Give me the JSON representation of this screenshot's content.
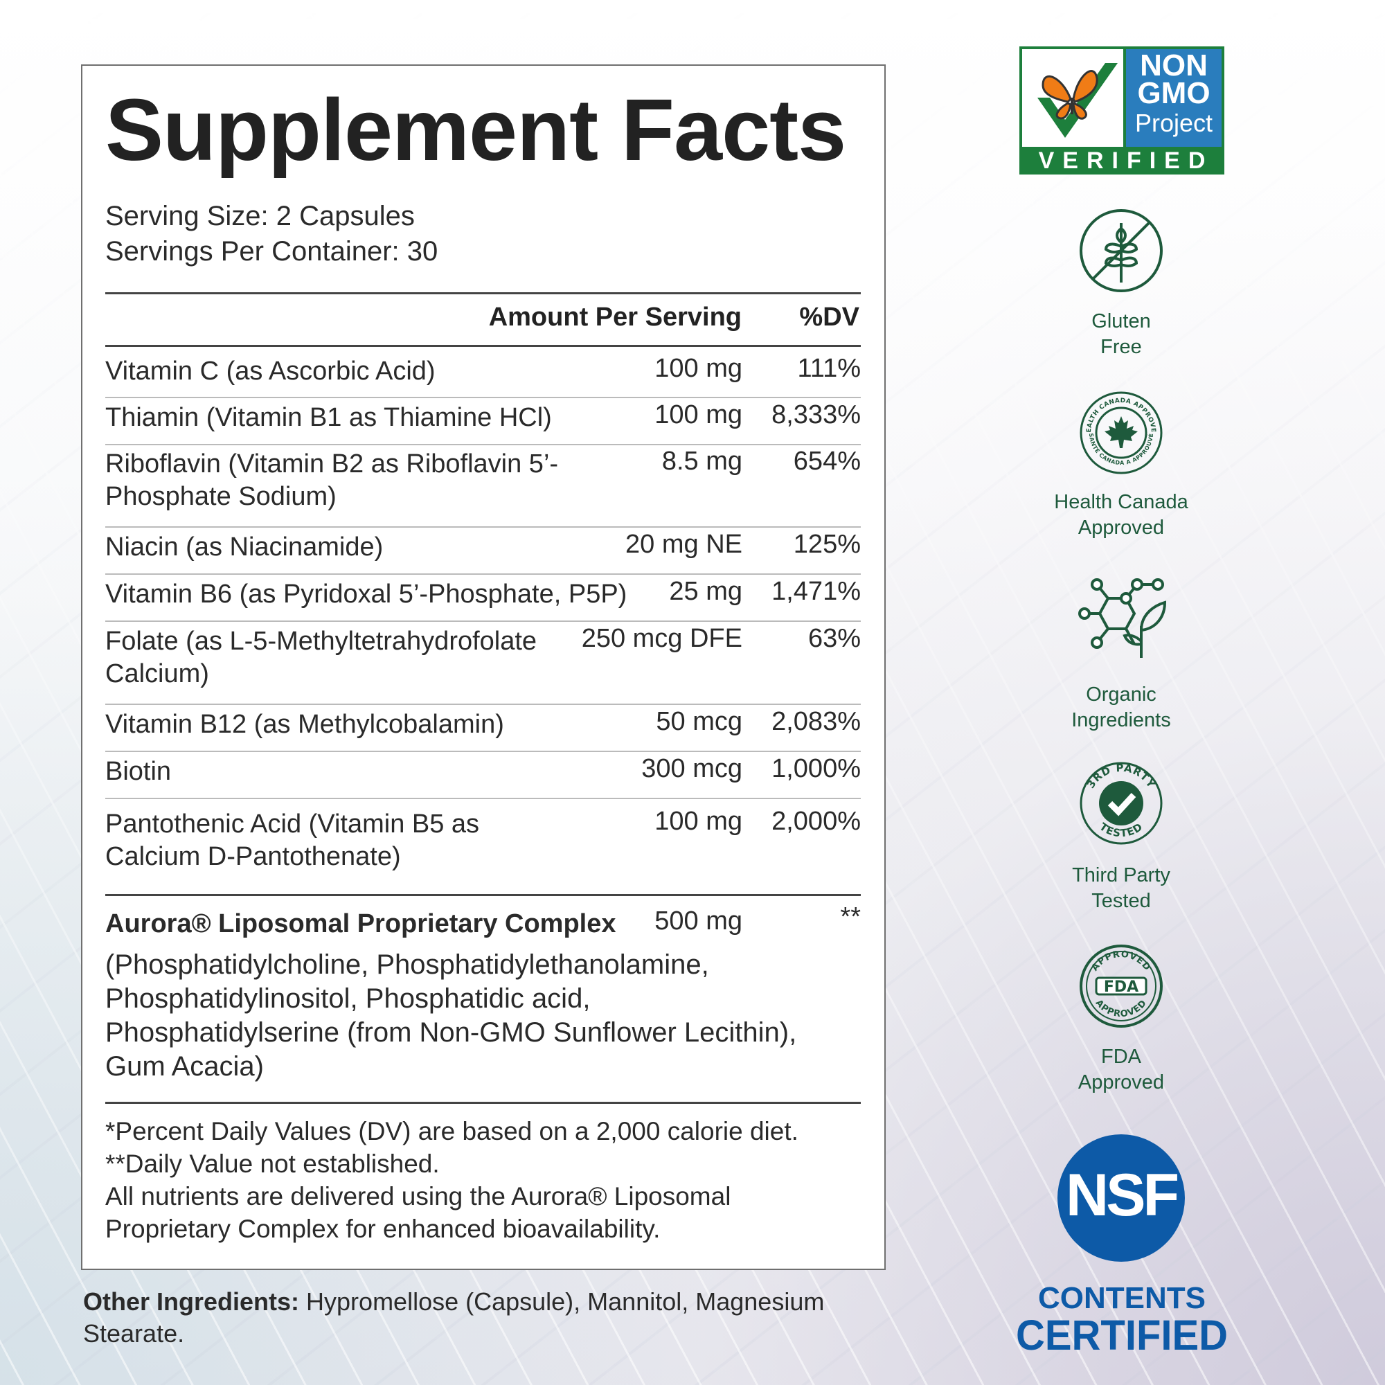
{
  "panel": {
    "title": "Supplement Facts",
    "serving_size": "Serving Size: 2 Capsules",
    "servings_per_container": "Servings Per Container: 30",
    "header_amount": "Amount Per Serving",
    "header_dv": "%DV",
    "rows": [
      {
        "name": "Vitamin C (as Ascorbic Acid)",
        "amount": "100 mg",
        "dv": "111%"
      },
      {
        "name": "Thiamin (Vitamin B1 as Thiamine HCl)",
        "amount": "100 mg",
        "dv": "8,333%"
      },
      {
        "name": "Riboflavin (Vitamin B2 as Riboflavin 5’-Phosphate Sodium)",
        "amount": "8.5 mg",
        "dv": "654%"
      },
      {
        "name": "Niacin (as Niacinamide)",
        "amount": "20 mg NE",
        "dv": "125%"
      },
      {
        "name": "Vitamin B6 (as Pyridoxal 5’-Phosphate, P5P)",
        "amount": "25 mg",
        "dv": "1,471%"
      },
      {
        "name": "Folate (as L-5-Methyltetrahydrofolate Calcium)",
        "amount": "250 mcg DFE",
        "dv": "63%"
      },
      {
        "name": "Vitamin B12 (as Methylcobalamin)",
        "amount": "50 mcg",
        "dv": "2,083%"
      },
      {
        "name": "Biotin",
        "amount": "300 mcg",
        "dv": "1,000%"
      },
      {
        "name": "Pantothenic Acid (Vitamin B5 as Calcium D-Pantothenate)",
        "amount": "100 mg",
        "dv": "2,000%"
      }
    ],
    "complex": {
      "name": "Aurora® Liposomal Proprietary Complex",
      "amount": "500 mg",
      "dv": "**",
      "description": "(Phosphatidylcholine, Phosphatidylethanolamine, Phosphatidylinositol, Phosphatidic acid, Phosphatidylserine (from Non-GMO Sunflower Lecithin), Gum Acacia)"
    },
    "footnotes": [
      "*Percent Daily Values (DV) are based on a 2,000 calorie diet.",
      "**Daily Value not established.",
      "All nutrients are delivered using the Aurora® Liposomal",
      "Proprietary Complex for enhanced bioavailability."
    ]
  },
  "other_ingredients": {
    "label": "Other Ingredients:",
    "text": " Hypromellose (Capsule), Mannitol, Magnesium Stearate."
  },
  "badges": {
    "non_gmo": {
      "line1": "NON",
      "line2": "GMO",
      "line3": "Project",
      "verified": "VERIFIED"
    },
    "gluten_free": {
      "line1": "Gluten",
      "line2": "Free"
    },
    "health_canada": {
      "line1": "Health Canada",
      "line2": "Approved",
      "seal_text_top": "HEALTH CANADA APPROVED",
      "seal_text_bottom": "SANTÉ CANADA A APPROUVÉ"
    },
    "organic": {
      "line1": "Organic",
      "line2": "Ingredients"
    },
    "third_party": {
      "line1": "Third Party",
      "line2": "Tested",
      "seal_top": "3RD PARTY",
      "seal_bottom": "TESTED"
    },
    "fda": {
      "line1": "FDA",
      "line2": "Approved",
      "seal_top": "APPROVED",
      "seal_mid": "FDA",
      "seal_bottom": "APPROVED"
    },
    "nsf": {
      "logo": "NSF",
      "line1": "CONTENTS",
      "line2": "CERTIFIED"
    }
  },
  "colors": {
    "badge_green": "#1e5a3c",
    "nongmo_green": "#1d7f3c",
    "nongmo_blue": "#2a7dbd",
    "nsf_blue": "#0d5aa7",
    "text": "#222222"
  }
}
